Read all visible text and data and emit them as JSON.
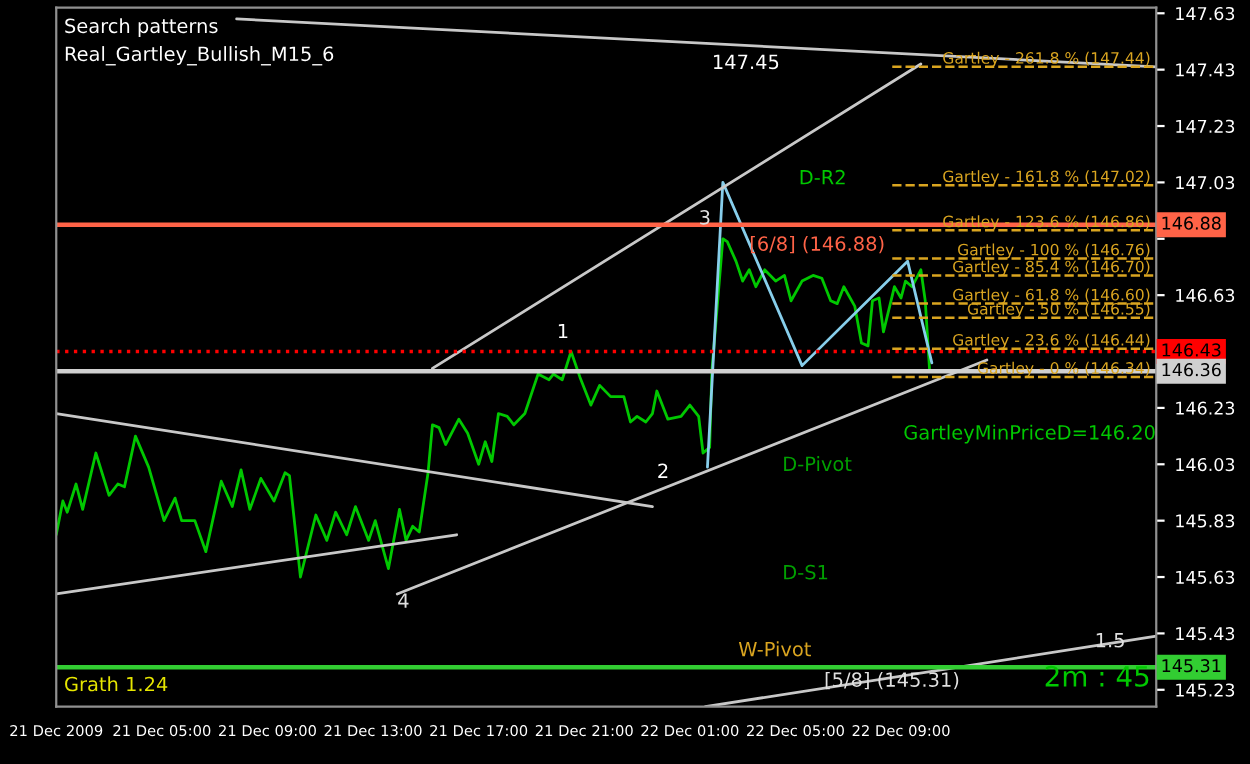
{
  "chart_data": {
    "type": "line",
    "xlim": [
      "2009-12-21T01:00",
      "2009-12-22T18:40"
    ],
    "ylim": [
      145.17,
      147.65
    ],
    "xticks": [
      {
        "value": "2009-12-21T01:00",
        "label": "21 Dec 2009"
      },
      {
        "value": "2009-12-21T05:00",
        "label": "21 Dec 05:00"
      },
      {
        "value": "2009-12-21T09:00",
        "label": "21 Dec 09:00"
      },
      {
        "value": "2009-12-21T13:00",
        "label": "21 Dec 13:00"
      },
      {
        "value": "2009-12-21T17:00",
        "label": "21 Dec 17:00"
      },
      {
        "value": "2009-12-21T21:00",
        "label": "21 Dec 21:00"
      },
      {
        "value": "2009-12-22T01:00",
        "label": "22 Dec 01:00"
      },
      {
        "value": "2009-12-22T05:00",
        "label": "22 Dec 05:00"
      },
      {
        "value": "2009-12-22T09:00",
        "label": "22 Dec 09:00"
      }
    ],
    "yticks": [
      145.23,
      145.43,
      145.63,
      145.83,
      146.03,
      146.23,
      {
        "value": 146.43,
        "label": null
      },
      146.63,
      {
        "value": 146.83,
        "label": null
      },
      147.03,
      147.23,
      147.43,
      147.63
    ],
    "series": [
      {
        "color": "#00c800",
        "x": [
          "2009-12-21T01:00",
          "2009-12-21T01:15",
          "2009-12-21T01:25",
          "2009-12-21T01:45",
          "2009-12-21T02:00",
          "2009-12-21T02:30",
          "2009-12-21T03:00",
          "2009-12-21T03:20",
          "2009-12-21T03:35",
          "2009-12-21T04:00",
          "2009-12-21T04:30",
          "2009-12-21T05:05",
          "2009-12-21T05:30",
          "2009-12-21T05:45",
          "2009-12-21T06:15",
          "2009-12-21T06:40",
          "2009-12-21T07:15",
          "2009-12-21T07:40",
          "2009-12-21T08:00",
          "2009-12-21T08:20",
          "2009-12-21T08:45",
          "2009-12-21T09:15",
          "2009-12-21T09:40",
          "2009-12-21T09:50",
          "2009-12-21T10:15",
          "2009-12-21T10:50",
          "2009-12-21T11:15",
          "2009-12-21T11:35",
          "2009-12-21T12:00",
          "2009-12-21T12:20",
          "2009-12-21T12:50",
          "2009-12-21T13:05",
          "2009-12-21T13:35",
          "2009-12-21T14:00",
          "2009-12-21T14:15",
          "2009-12-21T14:30",
          "2009-12-21T14:45",
          "2009-12-21T15:05",
          "2009-12-21T15:15",
          "2009-12-21T15:30",
          "2009-12-21T15:45",
          "2009-12-21T16:15",
          "2009-12-21T16:35",
          "2009-12-21T17:00",
          "2009-12-21T17:15",
          "2009-12-21T17:30",
          "2009-12-21T17:45",
          "2009-12-21T18:05",
          "2009-12-21T18:20",
          "2009-12-21T18:45",
          "2009-12-21T19:15",
          "2009-12-21T19:40",
          "2009-12-21T19:50",
          "2009-12-21T20:10",
          "2009-12-21T20:30",
          "2009-12-21T20:50",
          "2009-12-21T21:15",
          "2009-12-21T21:35",
          "2009-12-21T22:00",
          "2009-12-21T22:30",
          "2009-12-21T22:45",
          "2009-12-21T23:00",
          "2009-12-21T23:20",
          "2009-12-21T23:35",
          "2009-12-21T23:45",
          "2009-12-22T00:10",
          "2009-12-22T00:40",
          "2009-12-22T01:00",
          "2009-12-22T01:20",
          "2009-12-22T01:30",
          "2009-12-22T01:45",
          "2009-12-22T01:50",
          "2009-12-22T02:15",
          "2009-12-22T02:25",
          "2009-12-22T02:45",
          "2009-12-22T03:00",
          "2009-12-22T03:15",
          "2009-12-22T03:30",
          "2009-12-22T03:50",
          "2009-12-22T04:15",
          "2009-12-22T04:35",
          "2009-12-22T04:50",
          "2009-12-22T05:15",
          "2009-12-22T05:40",
          "2009-12-22T06:00",
          "2009-12-22T06:20",
          "2009-12-22T06:35",
          "2009-12-22T06:50",
          "2009-12-22T07:15",
          "2009-12-22T07:30",
          "2009-12-22T07:45",
          "2009-12-22T07:55",
          "2009-12-22T08:10",
          "2009-12-22T08:20",
          "2009-12-22T08:45",
          "2009-12-22T09:00",
          "2009-12-22T09:10",
          "2009-12-22T09:25",
          "2009-12-22T09:45",
          "2009-12-22T09:55",
          "2009-12-22T10:05"
        ],
        "values": [
          145.78,
          145.9,
          145.86,
          145.96,
          145.87,
          146.07,
          145.92,
          145.96,
          145.95,
          146.13,
          146.02,
          145.83,
          145.91,
          145.83,
          145.83,
          145.72,
          145.97,
          145.88,
          146.01,
          145.87,
          145.98,
          145.9,
          146.0,
          145.99,
          145.63,
          145.85,
          145.76,
          145.86,
          145.78,
          145.88,
          145.76,
          145.83,
          145.66,
          145.87,
          145.76,
          145.81,
          145.79,
          146.0,
          146.17,
          146.16,
          146.1,
          146.19,
          146.14,
          146.03,
          146.11,
          146.04,
          146.21,
          146.2,
          146.17,
          146.21,
          146.35,
          146.33,
          146.35,
          146.33,
          146.43,
          146.34,
          146.24,
          146.31,
          146.27,
          146.27,
          146.18,
          146.2,
          146.18,
          146.21,
          146.29,
          146.19,
          146.2,
          146.24,
          146.2,
          146.07,
          146.09,
          146.36,
          146.83,
          146.82,
          146.75,
          146.68,
          146.72,
          146.66,
          146.72,
          146.68,
          146.7,
          146.61,
          146.68,
          146.7,
          146.69,
          146.61,
          146.6,
          146.66,
          146.59,
          146.46,
          146.45,
          146.61,
          146.62,
          146.5,
          146.66,
          146.62,
          146.68,
          146.66,
          146.72,
          146.61,
          146.36
        ]
      },
      {
        "color": "#87ceeb",
        "x": [
          "2009-12-22T01:40",
          "2009-12-22T02:15",
          "2009-12-22T05:15",
          "2009-12-22T09:15",
          "2009-12-22T10:10"
        ],
        "values": [
          146.02,
          147.03,
          146.38,
          146.75,
          146.39
        ]
      },
      {
        "color": "#c8c8c8",
        "x": [
          "2009-12-21T01:00",
          "2009-12-21T23:35"
        ],
        "values": [
          146.21,
          145.88
        ]
      },
      {
        "color": "#c8c8c8",
        "x": [
          "2009-12-21T01:00",
          "2009-12-21T16:10"
        ],
        "values": [
          145.57,
          145.78
        ]
      },
      {
        "color": "#c8c8c8",
        "x": [
          "2009-12-21T13:55",
          "2009-12-22T12:15"
        ],
        "values": [
          145.57,
          146.4
        ]
      },
      {
        "color": "#c8c8c8",
        "x": [
          "2009-12-22T01:35",
          "2009-12-22T18:40"
        ],
        "values": [
          145.17,
          145.42
        ]
      },
      {
        "color": "#c8c8c8",
        "x": [
          "2009-12-21T15:15",
          "2009-12-22T09:45"
        ],
        "values": [
          146.37,
          147.45
        ]
      },
      {
        "color": "#c8c8c8",
        "x": [
          "2009-12-21T07:50",
          "2009-12-22T18:40"
        ],
        "values": [
          147.61,
          147.44
        ]
      }
    ],
    "ref_lines": [
      {
        "axis": "y",
        "value": 146.88,
        "label": "146.88",
        "color": "#ff6347",
        "line_style": "solid"
      },
      {
        "axis": "y",
        "value": 146.43,
        "label": "146.43",
        "color": "#ff0000",
        "line_style": "dotted"
      },
      {
        "axis": "y",
        "value": 146.36,
        "label": "146.36",
        "color": "#d0d0d0",
        "line_style": "solid"
      },
      {
        "axis": "y",
        "value": 145.31,
        "label": "145.31",
        "color": "#32cd32",
        "line_style": "solid"
      },
      {
        "axis": "y",
        "value": 147.44,
        "label": "Gartley - 261.8 % (147.44)",
        "color": "#daa520",
        "line_style": "dashed"
      },
      {
        "axis": "y",
        "value": 147.02,
        "label": "Gartley - 161.8 % (147.02)",
        "color": "#daa520",
        "line_style": "dashed"
      },
      {
        "axis": "y",
        "value": 146.86,
        "label": "Gartley - 123.6 % (146.86)",
        "color": "#daa520",
        "line_style": "dashed"
      },
      {
        "axis": "y",
        "value": 146.76,
        "label": "Gartley - 100 % (146.76)",
        "color": "#daa520",
        "line_style": "dashed"
      },
      {
        "axis": "y",
        "value": 146.7,
        "label": "Gartley - 85.4 % (146.70)",
        "color": "#daa520",
        "line_style": "dashed"
      },
      {
        "axis": "y",
        "value": 146.6,
        "label": "Gartley - 61.8 % (146.60)",
        "color": "#daa520",
        "line_style": "dashed"
      },
      {
        "axis": "y",
        "value": 146.55,
        "label": "Gartley - 50 % (146.55)",
        "color": "#daa520",
        "line_style": "dashed"
      },
      {
        "axis": "y",
        "value": 146.44,
        "label": "Gartley - 23.6 % (146.44)",
        "color": "#daa520",
        "line_style": "dashed"
      },
      {
        "axis": "y",
        "value": 146.34,
        "label": "Gartley - 0 % (146.34)",
        "color": "#daa520",
        "line_style": "dashed"
      }
    ],
    "annotations": [
      "Search patterns",
      "Real_Gartley_Bullish_M15_6",
      "1",
      "2",
      {
        "text": "3",
        "x": "2009-12-22T01:20",
        "y": 146.9
      },
      {
        "text": "4",
        "x": "2009-12-21T13:55",
        "y": 145.54
      },
      "147.45",
      "D-R2",
      "[6/8] (146.88)",
      "GartleyMinPriceD=146.20",
      "D-Pivot",
      "D-S1",
      "W-Pivot",
      {
        "text": "[5/8] (145.31)",
        "x": "2009-12-22T06:05",
        "y": 145.26
      },
      {
        "text": "1.5",
        "x": "2009-12-22T16:20",
        "y": 145.4
      },
      "2m : 45",
      "Grath 1.24"
    ]
  }
}
